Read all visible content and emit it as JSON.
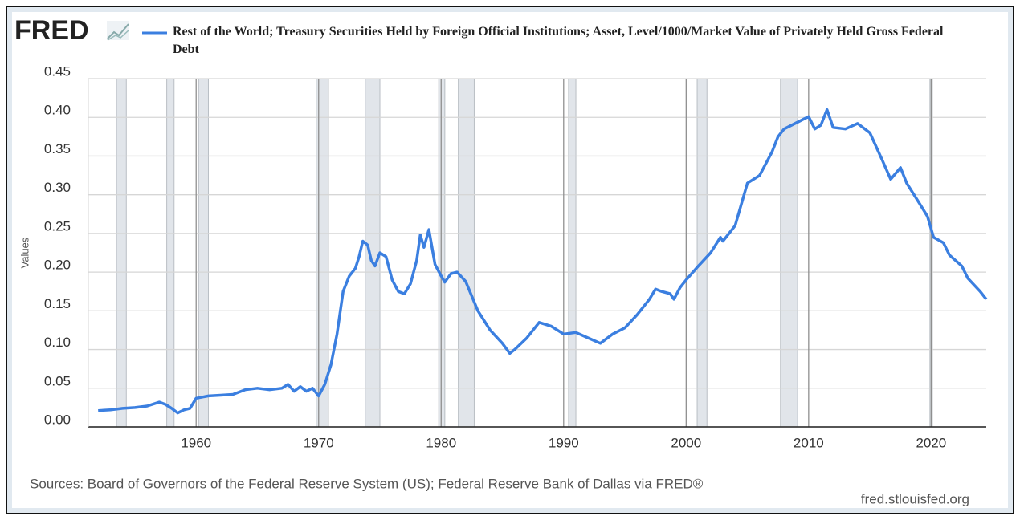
{
  "logo": "FRED",
  "chart_data": {
    "type": "line",
    "title": "Rest of the World; Treasury Securities Held by Foreign Official Institutions; Asset, Level/1000/Market Value of Privately Held Gross Federal Debt",
    "y_label": "Values",
    "source": "Sources: Board of Governors of the Federal Reserve System (US); Federal Reserve Bank of Dallas via FRED®",
    "site": "fred.stlouisfed.org",
    "x": [
      1952,
      1953,
      1954,
      1955,
      1956,
      1957,
      1957.5,
      1958,
      1958.5,
      1959,
      1959.5,
      1960,
      1961,
      1962,
      1963,
      1964,
      1965,
      1966,
      1967,
      1967.5,
      1968,
      1968.5,
      1969,
      1969.5,
      1970,
      1970.5,
      1971,
      1971.5,
      1972,
      1972.5,
      1973,
      1973.3,
      1973.6,
      1974,
      1974.3,
      1974.6,
      1975,
      1975.5,
      1976,
      1976.5,
      1977,
      1977.5,
      1978,
      1978.3,
      1978.6,
      1979,
      1979.5,
      1980,
      1980.3,
      1980.8,
      1981.3,
      1982,
      1983,
      1984,
      1985,
      1985.6,
      1986,
      1987,
      1988,
      1989,
      1990,
      1991,
      1992,
      1993,
      1994,
      1995,
      1996,
      1997,
      1997.5,
      1998,
      1998.7,
      1999,
      1999.5,
      2000,
      2001,
      2002,
      2002.8,
      2003,
      2004,
      2005,
      2006,
      2007,
      2007.5,
      2008,
      2009,
      2010,
      2010.5,
      2011,
      2011.5,
      2012,
      2013,
      2014,
      2015,
      2016,
      2016.7,
      2017.5,
      2018,
      2019,
      2019.7,
      2020.2,
      2021,
      2021.5,
      2022.5,
      2023,
      2024,
      2024.5
    ],
    "series": [
      {
        "name": "Rest of the World; Treasury Securities Held by Foreign Official Institutions; Asset, Level/1000/Market Value of Privately Held Gross Federal Debt",
        "color": "#3b7fe0",
        "values": [
          0.021,
          0.022,
          0.024,
          0.025,
          0.027,
          0.032,
          0.029,
          0.024,
          0.018,
          0.022,
          0.024,
          0.037,
          0.04,
          0.041,
          0.042,
          0.048,
          0.05,
          0.048,
          0.05,
          0.055,
          0.046,
          0.052,
          0.046,
          0.05,
          0.04,
          0.055,
          0.08,
          0.12,
          0.175,
          0.195,
          0.205,
          0.22,
          0.24,
          0.235,
          0.215,
          0.208,
          0.225,
          0.22,
          0.19,
          0.175,
          0.172,
          0.185,
          0.215,
          0.248,
          0.232,
          0.255,
          0.21,
          0.195,
          0.187,
          0.198,
          0.2,
          0.188,
          0.15,
          0.125,
          0.108,
          0.095,
          0.1,
          0.115,
          0.135,
          0.13,
          0.12,
          0.122,
          0.115,
          0.108,
          0.12,
          0.128,
          0.145,
          0.165,
          0.178,
          0.175,
          0.172,
          0.165,
          0.18,
          0.19,
          0.208,
          0.225,
          0.245,
          0.24,
          0.26,
          0.315,
          0.325,
          0.355,
          0.375,
          0.385,
          0.393,
          0.401,
          0.385,
          0.39,
          0.41,
          0.387,
          0.385,
          0.392,
          0.38,
          0.345,
          0.32,
          0.335,
          0.315,
          0.29,
          0.272,
          0.245,
          0.238,
          0.222,
          0.208,
          0.192,
          0.175,
          0.165
        ]
      }
    ],
    "recessions": [
      [
        1953.5,
        1954.3
      ],
      [
        1957.6,
        1958.2
      ],
      [
        1960.2,
        1961.0
      ],
      [
        1969.8,
        1970.8
      ],
      [
        1973.8,
        1975.0
      ],
      [
        1979.8,
        1980.3
      ],
      [
        1981.4,
        1982.7
      ],
      [
        1990.4,
        1991.0
      ],
      [
        2000.9,
        2001.7
      ],
      [
        2007.7,
        2009.1
      ],
      [
        2019.9,
        2020.1
      ]
    ],
    "xlim": [
      1951.2,
      2024.5
    ],
    "xticks": [
      1960,
      1970,
      1980,
      1990,
      2000,
      2010,
      2020
    ],
    "ylim": [
      0,
      0.45
    ],
    "yticks": [
      {
        "value": 0,
        "label": "0.00"
      },
      0.05,
      {
        "value": 0.1,
        "label": "0.10"
      },
      0.15,
      {
        "value": 0.2,
        "label": "0.20"
      },
      0.25,
      {
        "value": 0.3,
        "label": "0.30"
      },
      0.35,
      {
        "value": 0.4,
        "label": "0.40"
      },
      0.45
    ],
    "grid": true
  }
}
